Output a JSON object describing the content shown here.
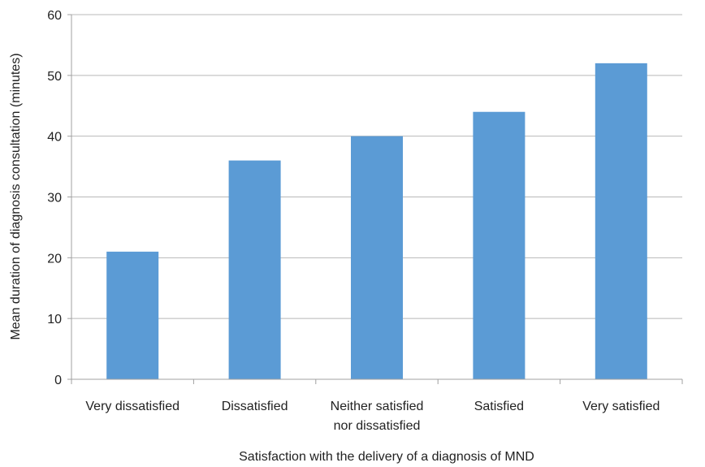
{
  "chart_data": {
    "type": "bar",
    "title": "",
    "xlabel": "Satisfaction with the delivery of a diagnosis of MND",
    "ylabel": "Mean duration of diagnosis consultation (minutes)",
    "categories": [
      [
        "Very dissatisfied"
      ],
      [
        "Dissatisfied"
      ],
      [
        "Neither satisfied",
        "nor dissatisfied"
      ],
      [
        "Satisfied"
      ],
      [
        "Very satisfied"
      ]
    ],
    "values": [
      21,
      36,
      40,
      44,
      52
    ],
    "ylim": [
      0,
      60
    ],
    "yticks": [
      0,
      10,
      20,
      30,
      40,
      50,
      60
    ],
    "grid": true,
    "legend": "none",
    "colors": {
      "bar": "#5b9bd5",
      "grid": "#b8b8b8"
    }
  }
}
